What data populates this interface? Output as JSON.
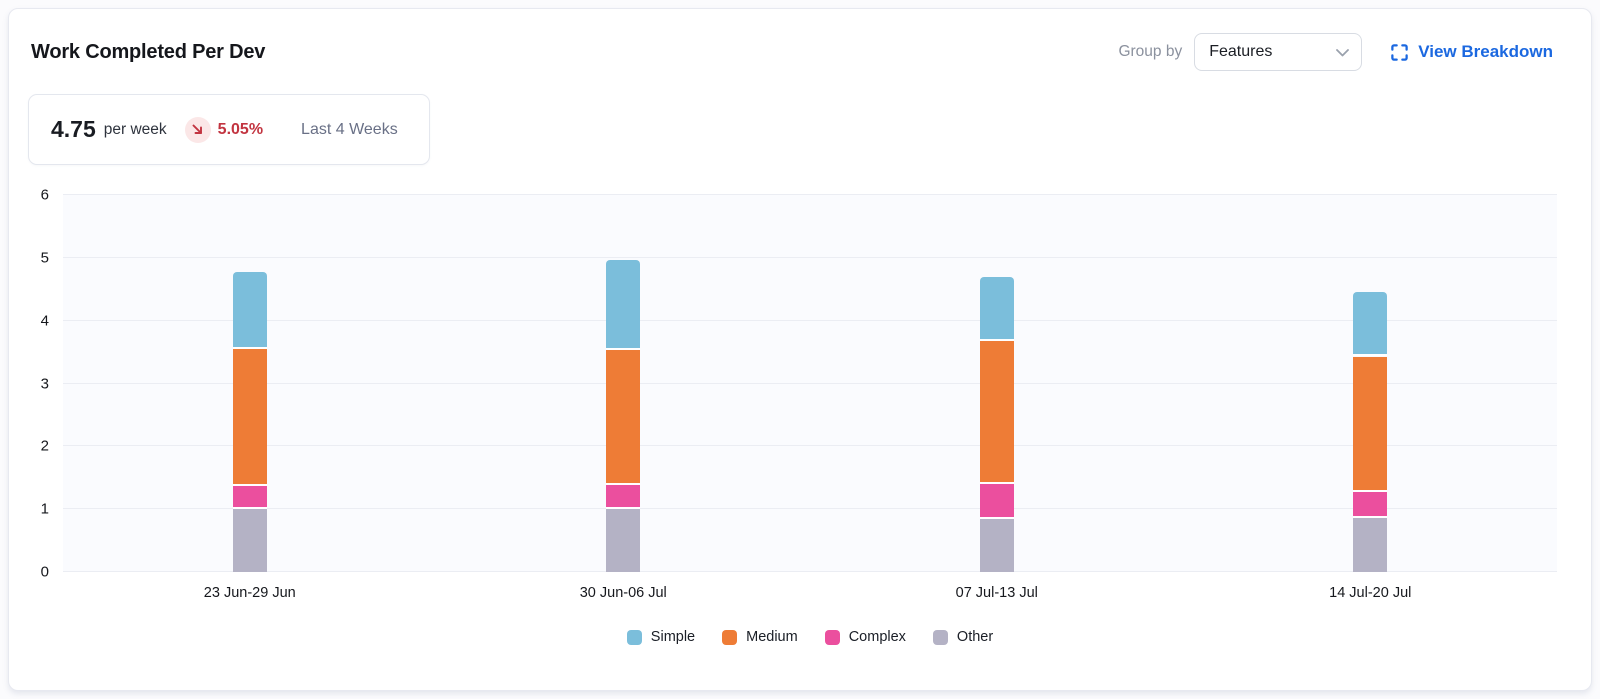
{
  "header": {
    "title": "Work Completed Per Dev",
    "group_by_label": "Group by",
    "group_by_value": "Features",
    "view_breakdown_label": "View Breakdown"
  },
  "stat": {
    "value": "4.75",
    "unit": "per week",
    "trend_direction": "down",
    "trend_value": "5.05%",
    "period": "Last 4 Weeks"
  },
  "colors": {
    "simple_blue": "#7bbedb",
    "medium_orange": "#ee7c36",
    "complex_pink": "#eb4f9e",
    "other_gray": "#b4b2c5",
    "trend_red": "#c23440",
    "trend_badge_bg": "#fbe7e7",
    "link_blue": "#1b68e0",
    "plot_bg": "#fafbfe",
    "gridline": "#ebedf3"
  },
  "chart_data": {
    "type": "bar",
    "stacked": true,
    "title": "Work Completed Per Dev",
    "categories": [
      "23 Jun-29 Jun",
      "30 Jun-06 Jul",
      "07 Jul-13 Jul",
      "14 Jul-20 Jul"
    ],
    "series": [
      {
        "name": "Other",
        "color": "#b4b2c5",
        "values": [
          1.0,
          1.0,
          0.85,
          0.86
        ]
      },
      {
        "name": "Complex",
        "color": "#eb4f9e",
        "values": [
          0.37,
          0.38,
          0.55,
          0.42
        ]
      },
      {
        "name": "Medium",
        "color": "#ee7c36",
        "values": [
          2.18,
          2.15,
          2.27,
          2.15
        ]
      },
      {
        "name": "Simple",
        "color": "#7bbedb",
        "values": [
          1.22,
          1.44,
          1.03,
          1.03
        ]
      }
    ],
    "stack_order_note": "series listed bottom-to-top",
    "totals": [
      4.77,
      4.97,
      4.7,
      4.46
    ],
    "legend_order": [
      "Simple",
      "Medium",
      "Complex",
      "Other"
    ],
    "legend_position": "bottom",
    "xlabel": "",
    "ylabel": "",
    "ylim": [
      0,
      6
    ],
    "yticks": [
      0,
      1,
      2,
      3,
      4,
      5,
      6
    ],
    "grid": true
  }
}
